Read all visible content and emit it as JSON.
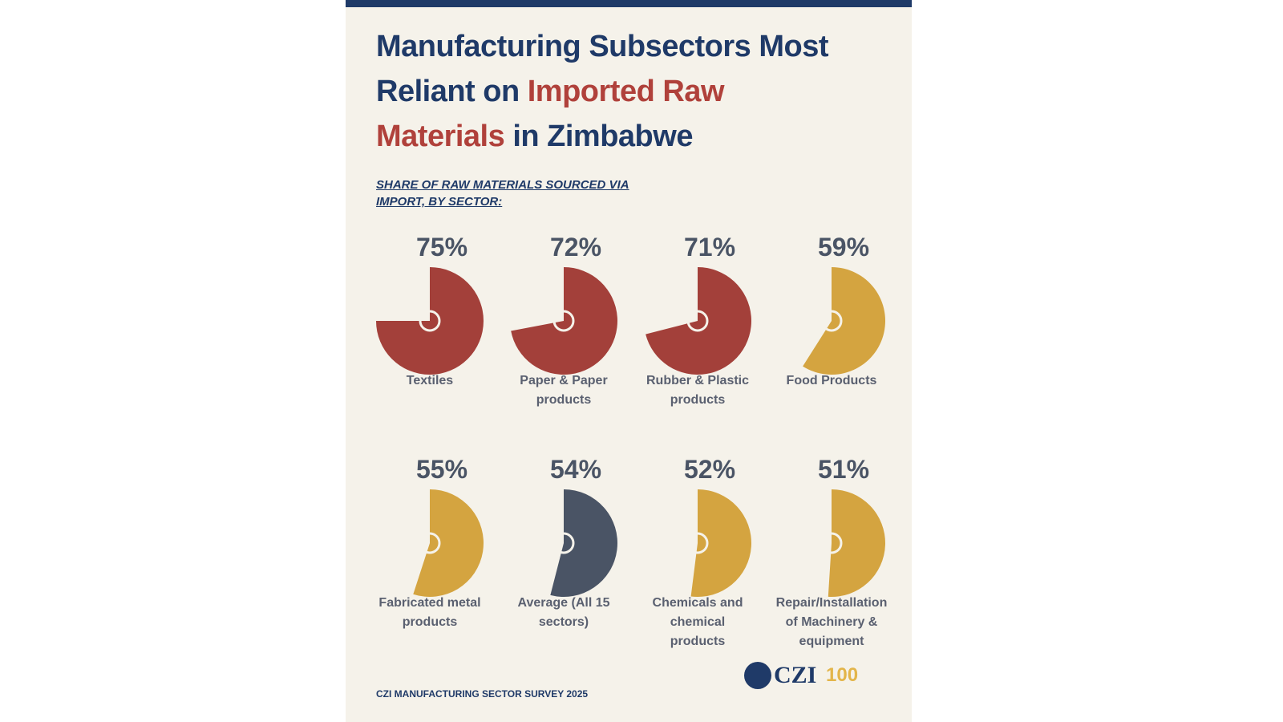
{
  "chart_data": {
    "type": "pie",
    "title_parts": [
      {
        "text": "Manufacturing Subsectors Most Reliant on",
        "color": "#1f3a68"
      },
      {
        "text": "Imported Raw Materials",
        "color": "#b0413b"
      },
      {
        "text": "in Zimbabwe",
        "color": "#1f3a68"
      }
    ],
    "subtitle": "SHARE OF RAW MATERIALS SOURCED VIA IMPORT, BY SECTOR:",
    "categories": [
      "Textiles",
      "Paper & Paper products",
      "Rubber & Plastic products",
      "Food Products",
      "Fabricated metal products",
      "Average (All 15 sectors)",
      "Chemicals and chemical products",
      "Repair/Installation of Machinery & equipment"
    ],
    "values": [
      75,
      72,
      71,
      59,
      55,
      54,
      52,
      51
    ],
    "value_labels": [
      "75%",
      "72%",
      "71%",
      "59%",
      "55%",
      "54%",
      "52%",
      "51%"
    ],
    "colors": [
      "#a3403a",
      "#a3403a",
      "#a3403a",
      "#d4a440",
      "#d4a440",
      "#4a5465",
      "#d4a440",
      "#d4a440"
    ],
    "footer": "CZI MANUFACTURING SECTOR SURVEY 2025",
    "logos": [
      "CZI",
      "100"
    ]
  }
}
